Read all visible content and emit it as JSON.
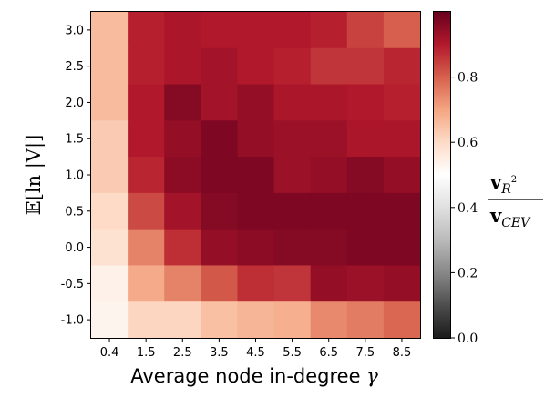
{
  "chart_data": {
    "type": "heatmap",
    "x": [
      "0.4",
      "1.5",
      "2.5",
      "3.5",
      "4.5",
      "5.5",
      "6.5",
      "7.5",
      "8.5"
    ],
    "y": [
      "3.0",
      "2.5",
      "2.0",
      "1.5",
      "1.0",
      "0.5",
      "0.0",
      "-0.5",
      "-1.0"
    ],
    "values": [
      [
        0.66,
        0.89,
        0.91,
        0.9,
        0.9,
        0.9,
        0.89,
        0.84,
        0.8
      ],
      [
        0.66,
        0.89,
        0.91,
        0.92,
        0.9,
        0.89,
        0.86,
        0.86,
        0.88
      ],
      [
        0.66,
        0.9,
        0.96,
        0.92,
        0.94,
        0.91,
        0.91,
        0.9,
        0.89
      ],
      [
        0.63,
        0.9,
        0.94,
        0.97,
        0.94,
        0.93,
        0.93,
        0.91,
        0.91
      ],
      [
        0.63,
        0.88,
        0.95,
        0.97,
        0.97,
        0.93,
        0.94,
        0.96,
        0.94
      ],
      [
        0.6,
        0.83,
        0.92,
        0.96,
        0.97,
        0.97,
        0.97,
        0.97,
        0.97
      ],
      [
        0.58,
        0.75,
        0.87,
        0.94,
        0.95,
        0.96,
        0.96,
        0.97,
        0.97
      ],
      [
        0.54,
        0.69,
        0.75,
        0.81,
        0.87,
        0.86,
        0.94,
        0.93,
        0.94
      ],
      [
        0.53,
        0.61,
        0.61,
        0.65,
        0.67,
        0.68,
        0.74,
        0.76,
        0.79
      ]
    ],
    "xlabel": "Average node in-degree",
    "xlabel_symbol": "γ",
    "ylabel": "𝔼[ln |V|]",
    "colorbar": {
      "ticks": [
        "0.0",
        "0.2",
        "0.4",
        "0.6",
        "0.8"
      ],
      "tick_values": [
        0.0,
        0.2,
        0.4,
        0.6,
        0.8
      ],
      "range": [
        0,
        1
      ],
      "colormap": "RdGy_r",
      "label_num_main": "v",
      "label_num_sub": "R",
      "label_num_sup": "2",
      "label_den_main": "v",
      "label_den_sub": "CEV"
    },
    "grid": false,
    "colors": {
      "low": "#1a1a1a",
      "mid": "#ffffff",
      "high": "#67001f"
    }
  }
}
